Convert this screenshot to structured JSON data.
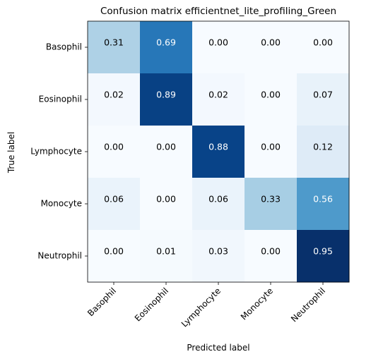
{
  "chart_data": {
    "type": "heatmap",
    "title": "Confusion matrix efficientnet_lite_profiling_Green",
    "xlabel": "Predicted label",
    "ylabel": "True label",
    "x_categories": [
      "Basophil",
      "Eosinophil",
      "Lymphocyte",
      "Monocyte",
      "Neutrophil"
    ],
    "y_categories": [
      "Basophil",
      "Eosinophil",
      "Lymphocyte",
      "Monocyte",
      "Neutrophil"
    ],
    "values": [
      [
        0.31,
        0.69,
        0.0,
        0.0,
        0.0
      ],
      [
        0.02,
        0.89,
        0.02,
        0.0,
        0.07
      ],
      [
        0.0,
        0.0,
        0.88,
        0.0,
        0.12
      ],
      [
        0.06,
        0.0,
        0.06,
        0.33,
        0.56
      ],
      [
        0.0,
        0.01,
        0.03,
        0.0,
        0.95
      ]
    ],
    "colormap": "Blues",
    "value_range": [
      0,
      0.95
    ],
    "grid": false,
    "legend": "none"
  }
}
